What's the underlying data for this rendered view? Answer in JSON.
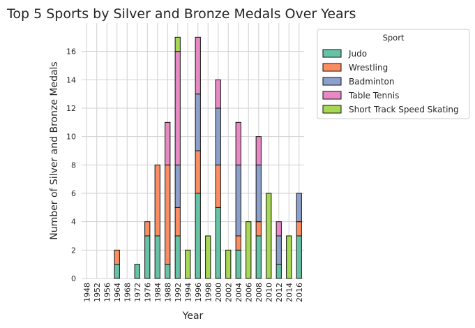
{
  "chart_data": {
    "type": "bar",
    "stacked": true,
    "title": "Top 5 Sports by Silver and Bronze Medals Over Years",
    "xlabel": "Year",
    "ylabel": "Number of Silver and Bronze Medals",
    "ylim": [
      0,
      18
    ],
    "yticks": [
      0,
      2,
      4,
      6,
      8,
      10,
      12,
      14,
      16
    ],
    "grid": true,
    "legend": {
      "title": "Sport",
      "placement": "outside-upper-right"
    },
    "categories": [
      "1948",
      "1952",
      "1956",
      "1964",
      "1968",
      "1972",
      "1976",
      "1984",
      "1988",
      "1992",
      "1994",
      "1996",
      "1998",
      "2000",
      "2002",
      "2004",
      "2006",
      "2008",
      "2010",
      "2012",
      "2014",
      "2016"
    ],
    "series": [
      {
        "name": "Judo",
        "color": "#66c2a5",
        "values": [
          0,
          0,
          0,
          1,
          0,
          1,
          3,
          3,
          1,
          3,
          0,
          6,
          0,
          5,
          0,
          2,
          0,
          3,
          0,
          1,
          0,
          3
        ]
      },
      {
        "name": "Wrestling",
        "color": "#fc8d62",
        "values": [
          0,
          0,
          0,
          1,
          0,
          0,
          1,
          5,
          7,
          2,
          0,
          3,
          0,
          3,
          0,
          1,
          0,
          1,
          0,
          0,
          0,
          1
        ]
      },
      {
        "name": "Badminton",
        "color": "#8da0cb",
        "values": [
          0,
          0,
          0,
          0,
          0,
          0,
          0,
          0,
          0,
          3,
          0,
          4,
          0,
          4,
          0,
          5,
          0,
          4,
          0,
          2,
          0,
          2
        ]
      },
      {
        "name": "Table Tennis",
        "color": "#e78ac3",
        "values": [
          0,
          0,
          0,
          0,
          0,
          0,
          0,
          0,
          3,
          8,
          0,
          4,
          0,
          2,
          0,
          3,
          0,
          2,
          0,
          1,
          0,
          0
        ]
      },
      {
        "name": "Short Track Speed Skating",
        "color": "#a6d854",
        "values": [
          0,
          0,
          0,
          0,
          0,
          0,
          0,
          0,
          0,
          1,
          2,
          0,
          3,
          0,
          2,
          0,
          4,
          0,
          6,
          0,
          3,
          0
        ]
      }
    ]
  }
}
